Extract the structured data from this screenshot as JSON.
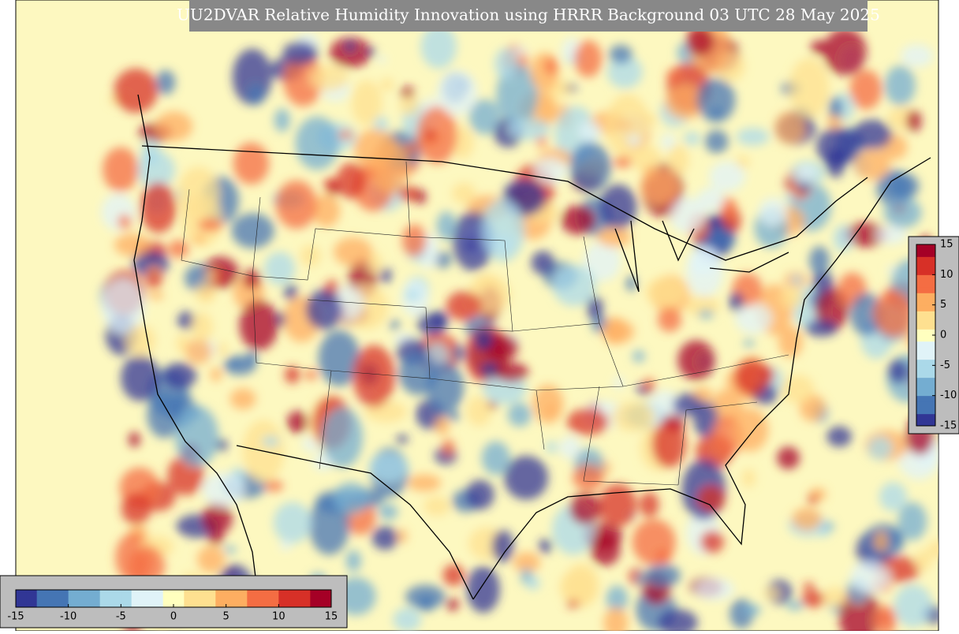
{
  "title": "UU2DVAR Relative Humidity Innovation using HRRR Background 03 UTC 28 May 2025",
  "colormap": [
    "#313695",
    "#4575b4",
    "#74add1",
    "#abd9e9",
    "#e0f3f8",
    "#ffffbf",
    "#fee090",
    "#fdae61",
    "#f46d43",
    "#d73027",
    "#a50026"
  ],
  "colorbar_right": {
    "lim": [
      -15,
      15
    ],
    "ticks": [
      15,
      10,
      5,
      0,
      -5,
      -10,
      -15
    ]
  },
  "colorbar_bottom": {
    "lim": [
      -15,
      15
    ],
    "ticks": [
      -15,
      -10,
      -5,
      0,
      5,
      10,
      15
    ]
  }
}
